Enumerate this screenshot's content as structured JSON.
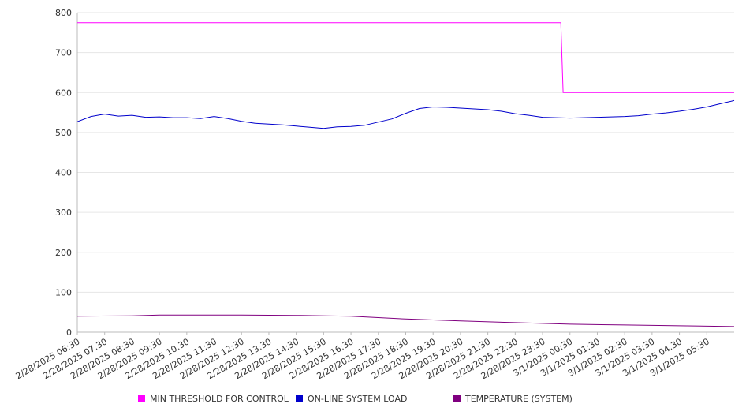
{
  "chart_data": {
    "type": "line",
    "title": "",
    "xlabel": "",
    "ylabel": "",
    "ylim": [
      0,
      800
    ],
    "yticks": [
      0,
      100,
      200,
      300,
      400,
      500,
      600,
      700,
      800
    ],
    "grid": true,
    "legend_position": "bottom",
    "x_tick_labels": [
      "2/28/2025 06:30",
      "2/28/2025 07:30",
      "2/28/2025 08:30",
      "2/28/2025 09:30",
      "2/28/2025 10:30",
      "2/28/2025 11:30",
      "2/28/2025 12:30",
      "2/28/2025 13:30",
      "2/28/2025 14:30",
      "2/28/2025 15:30",
      "2/28/2025 16:30",
      "2/28/2025 17:30",
      "2/28/2025 18:30",
      "2/28/2025 19:30",
      "2/28/2025 20:30",
      "2/28/2025 21:30",
      "2/28/2025 22:30",
      "2/28/2025 23:30",
      "3/1/2025 00:30",
      "3/1/2025 01:30",
      "3/1/2025 02:30",
      "3/1/2025 03:30",
      "3/1/2025 04:30",
      "3/1/2025 05:30"
    ],
    "x_start": "2/28/2025 06:30",
    "x_end": "3/1/2025 06:30",
    "series": [
      {
        "name": "MIN THRESHOLD FOR CONTROL",
        "color": "#ff00ff",
        "points": [
          [
            "2/28/2025 06:30",
            775
          ],
          [
            "3/1/2025 00:10",
            775
          ],
          [
            "3/1/2025 00:15",
            600
          ],
          [
            "3/1/2025 06:30",
            600
          ]
        ]
      },
      {
        "name": "ON-LINE SYSTEM LOAD",
        "color": "#0000cc",
        "points": [
          [
            "2/28/2025 06:30",
            527
          ],
          [
            "2/28/2025 07:00",
            540
          ],
          [
            "2/28/2025 07:30",
            546
          ],
          [
            "2/28/2025 08:00",
            541
          ],
          [
            "2/28/2025 08:30",
            543
          ],
          [
            "2/28/2025 09:00",
            538
          ],
          [
            "2/28/2025 09:30",
            539
          ],
          [
            "2/28/2025 10:00",
            537
          ],
          [
            "2/28/2025 10:30",
            537
          ],
          [
            "2/28/2025 11:00",
            535
          ],
          [
            "2/28/2025 11:30",
            540
          ],
          [
            "2/28/2025 12:00",
            535
          ],
          [
            "2/28/2025 12:30",
            528
          ],
          [
            "2/28/2025 13:00",
            523
          ],
          [
            "2/28/2025 13:30",
            521
          ],
          [
            "2/28/2025 14:00",
            519
          ],
          [
            "2/28/2025 14:30",
            516
          ],
          [
            "2/28/2025 15:00",
            513
          ],
          [
            "2/28/2025 15:30",
            510
          ],
          [
            "2/28/2025 16:00",
            514
          ],
          [
            "2/28/2025 16:30",
            515
          ],
          [
            "2/28/2025 17:00",
            518
          ],
          [
            "2/28/2025 17:30",
            526
          ],
          [
            "2/28/2025 18:00",
            534
          ],
          [
            "2/28/2025 18:30",
            548
          ],
          [
            "2/28/2025 19:00",
            560
          ],
          [
            "2/28/2025 19:30",
            564
          ],
          [
            "2/28/2025 20:00",
            563
          ],
          [
            "2/28/2025 20:30",
            561
          ],
          [
            "2/28/2025 21:00",
            559
          ],
          [
            "2/28/2025 21:30",
            557
          ],
          [
            "2/28/2025 22:00",
            553
          ],
          [
            "2/28/2025 22:30",
            547
          ],
          [
            "2/28/2025 23:00",
            543
          ],
          [
            "2/28/2025 23:30",
            538
          ],
          [
            "3/1/2025 00:00",
            537
          ],
          [
            "3/1/2025 00:30",
            536
          ],
          [
            "3/1/2025 01:00",
            537
          ],
          [
            "3/1/2025 01:30",
            538
          ],
          [
            "3/1/2025 02:00",
            539
          ],
          [
            "3/1/2025 02:30",
            540
          ],
          [
            "3/1/2025 03:00",
            542
          ],
          [
            "3/1/2025 03:30",
            546
          ],
          [
            "3/1/2025 04:00",
            549
          ],
          [
            "3/1/2025 04:30",
            553
          ],
          [
            "3/1/2025 05:00",
            558
          ],
          [
            "3/1/2025 05:30",
            564
          ],
          [
            "3/1/2025 06:00",
            572
          ],
          [
            "3/1/2025 06:30",
            580
          ]
        ]
      },
      {
        "name": "TEMPERATURE (SYSTEM)",
        "color": "#800080",
        "points": [
          [
            "2/28/2025 06:30",
            40
          ],
          [
            "2/28/2025 08:30",
            41
          ],
          [
            "2/28/2025 09:30",
            43
          ],
          [
            "2/28/2025 12:30",
            43
          ],
          [
            "2/28/2025 14:30",
            42
          ],
          [
            "2/28/2025 16:30",
            40
          ],
          [
            "2/28/2025 18:30",
            33
          ],
          [
            "2/28/2025 20:30",
            28
          ],
          [
            "2/28/2025 22:30",
            24
          ],
          [
            "3/1/2025 00:30",
            20
          ],
          [
            "3/1/2025 02:30",
            18
          ],
          [
            "3/1/2025 04:30",
            16
          ],
          [
            "3/1/2025 06:30",
            14
          ]
        ]
      }
    ]
  }
}
